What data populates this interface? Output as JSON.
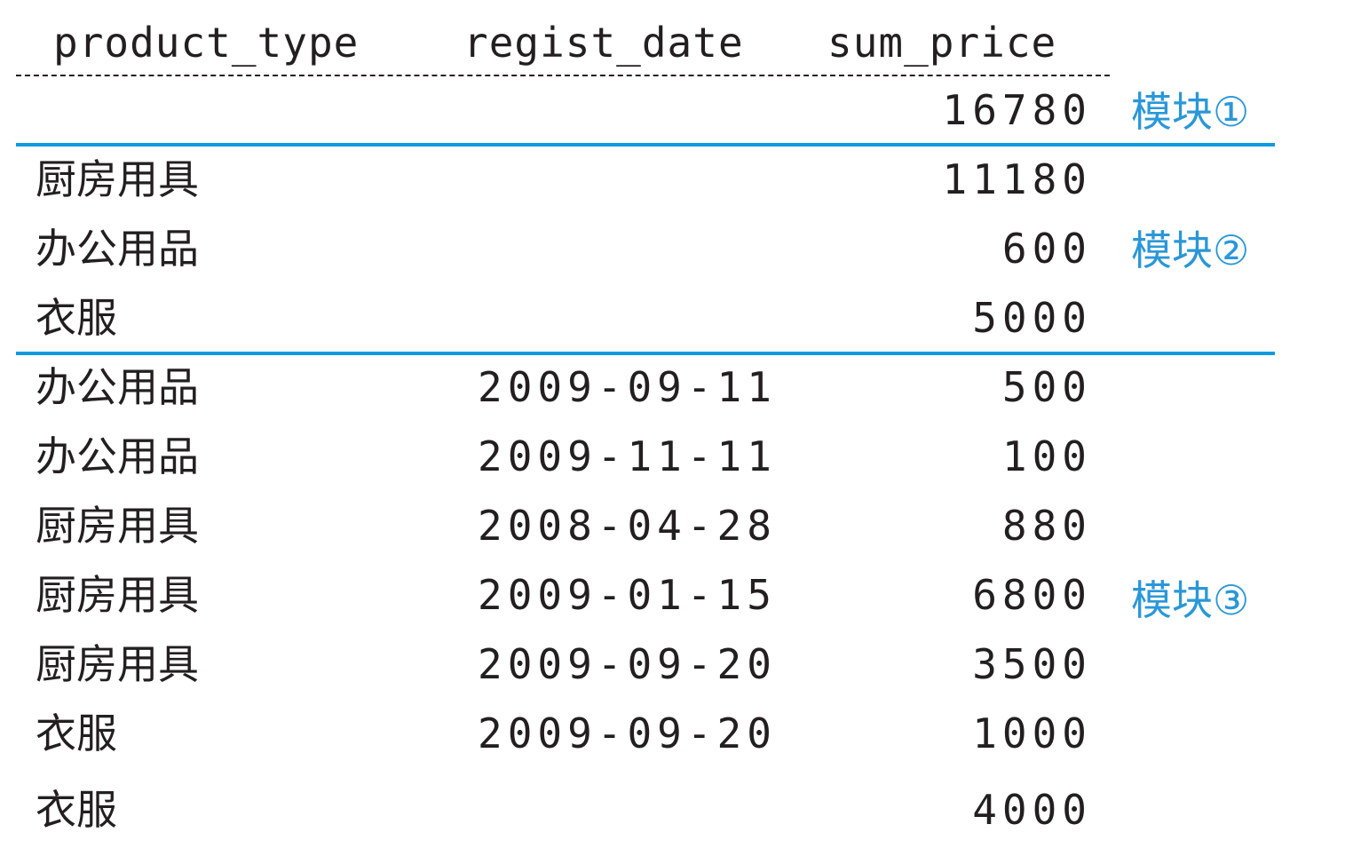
{
  "header": {
    "product_type": "product_type",
    "regist_date": "regist_date",
    "sum_price": "sum_price"
  },
  "labels": {
    "block1": "模块①",
    "block2": "模块②",
    "block3": "模块③"
  },
  "rows": [
    {
      "product_type": "",
      "regist_date": "",
      "sum_price": "16780"
    },
    {
      "product_type": "厨房用具",
      "regist_date": "",
      "sum_price": "11180"
    },
    {
      "product_type": "办公用品",
      "regist_date": "",
      "sum_price": "600"
    },
    {
      "product_type": "衣服",
      "regist_date": "",
      "sum_price": "5000"
    },
    {
      "product_type": "办公用品",
      "regist_date": "2009-09-11",
      "sum_price": "500"
    },
    {
      "product_type": "办公用品",
      "regist_date": "2009-11-11",
      "sum_price": "100"
    },
    {
      "product_type": "厨房用具",
      "regist_date": "2008-04-28",
      "sum_price": "880"
    },
    {
      "product_type": "厨房用具",
      "regist_date": "2009-01-15",
      "sum_price": "6800"
    },
    {
      "product_type": "厨房用具",
      "regist_date": "2009-09-20",
      "sum_price": "3500"
    },
    {
      "product_type": "衣服",
      "regist_date": "2009-09-20",
      "sum_price": "1000"
    },
    {
      "product_type": "衣服",
      "regist_date": "",
      "sum_price": "4000"
    }
  ],
  "colors": {
    "accent": "#0a9be0",
    "label": "#2a97d8",
    "text": "#231f20"
  }
}
